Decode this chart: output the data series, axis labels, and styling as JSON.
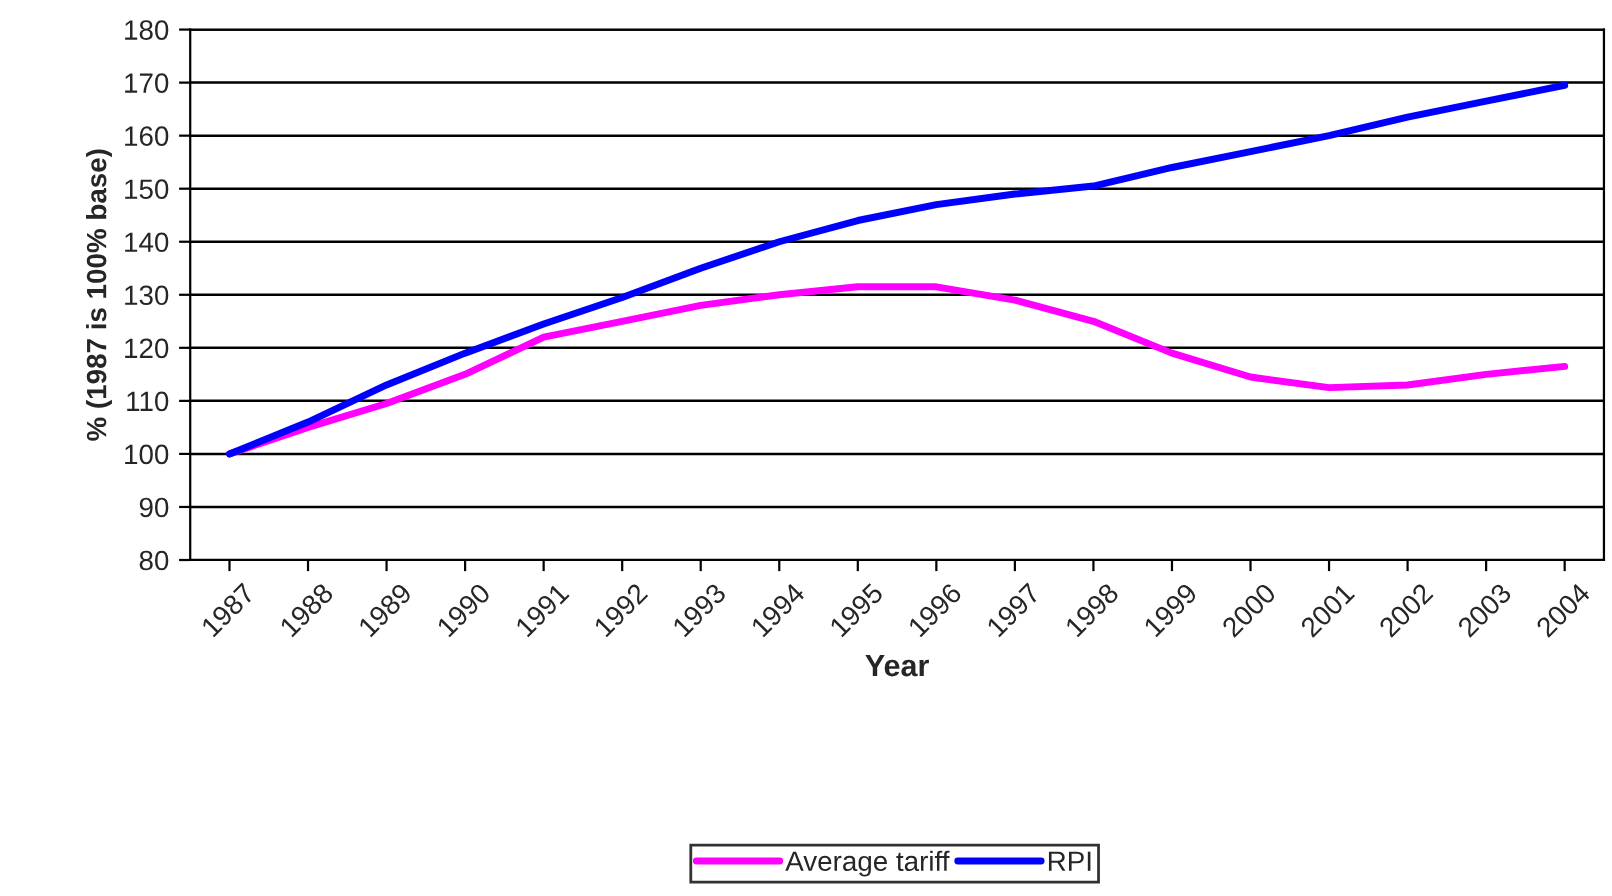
{
  "chart_data": {
    "type": "line",
    "xlabel": "Year",
    "ylabel": "% (1987 is 100% base)",
    "categories": [
      "1987",
      "1988",
      "1989",
      "1990",
      "1991",
      "1992",
      "1993",
      "1994",
      "1995",
      "1996",
      "1997",
      "1998",
      "1999",
      "2000",
      "2001",
      "2002",
      "2003",
      "2004"
    ],
    "series": [
      {
        "name": "Average tariff",
        "color": "#ff00ff",
        "values": [
          100,
          105,
          109.5,
          115,
          122,
          125,
          128,
          130,
          131.5,
          131.5,
          129,
          125,
          119,
          114.5,
          112.5,
          113,
          115,
          116.5
        ]
      },
      {
        "name": "RPI",
        "color": "#0000ff",
        "values": [
          100,
          106,
          113,
          119,
          124.5,
          129.5,
          135,
          140,
          144,
          147,
          149,
          150.5,
          154,
          157,
          160,
          163.5,
          166.5,
          169.5
        ]
      }
    ],
    "ylim": [
      80,
      180
    ],
    "yticks": [
      80,
      90,
      100,
      110,
      120,
      130,
      140,
      150,
      160,
      170,
      180
    ],
    "grid": "y",
    "legend": "bottom",
    "marker": "none",
    "line_style": "solid"
  }
}
